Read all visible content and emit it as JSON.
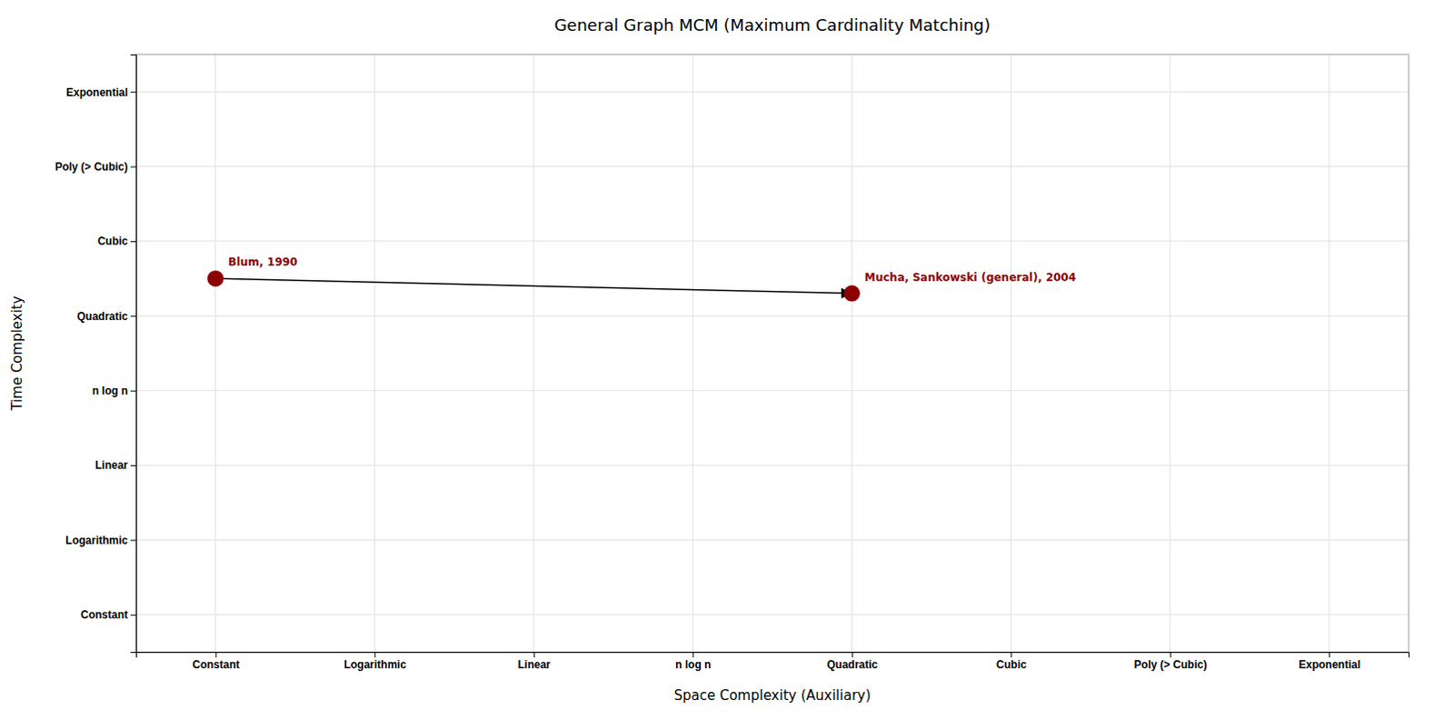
{
  "chart_data": {
    "type": "scatter",
    "title": "General Graph MCM (Maximum Cardinality Matching)",
    "xlabel": "Space Complexity (Auxiliary)",
    "ylabel": "Time Complexity",
    "x": [
      0,
      4
    ],
    "values": [
      4.5,
      4.3
    ],
    "point_labels": [
      "Blum, 1990",
      "Mucha, Sankowski (general), 2004"
    ],
    "color": "#8b0000",
    "arrow": {
      "from": [
        0,
        4.5
      ],
      "to": [
        4,
        4.3
      ],
      "color": "black"
    },
    "xlim": [
      -0.5,
      7.5
    ],
    "ylim": [
      -0.5,
      7.5
    ],
    "xticks": [
      {
        "value": 0,
        "label": "Constant"
      },
      {
        "value": 1,
        "label": "Logarithmic"
      },
      {
        "value": 2,
        "label": "Linear"
      },
      {
        "value": 3,
        "label": "n log n"
      },
      {
        "value": 4,
        "label": "Quadratic"
      },
      {
        "value": 5,
        "label": "Cubic"
      },
      {
        "value": 6,
        "label": "Poly (> Cubic)"
      },
      {
        "value": 7,
        "label": "Exponential"
      }
    ],
    "yticks": [
      {
        "value": 0,
        "label": "Constant"
      },
      {
        "value": 1,
        "label": "Logarithmic"
      },
      {
        "value": 2,
        "label": "Linear"
      },
      {
        "value": 3,
        "label": "n log n"
      },
      {
        "value": 4,
        "label": "Quadratic"
      },
      {
        "value": 5,
        "label": "Cubic"
      },
      {
        "value": 6,
        "label": "Poly (> Cubic)"
      },
      {
        "value": 7,
        "label": "Exponential"
      }
    ],
    "grid": true
  }
}
